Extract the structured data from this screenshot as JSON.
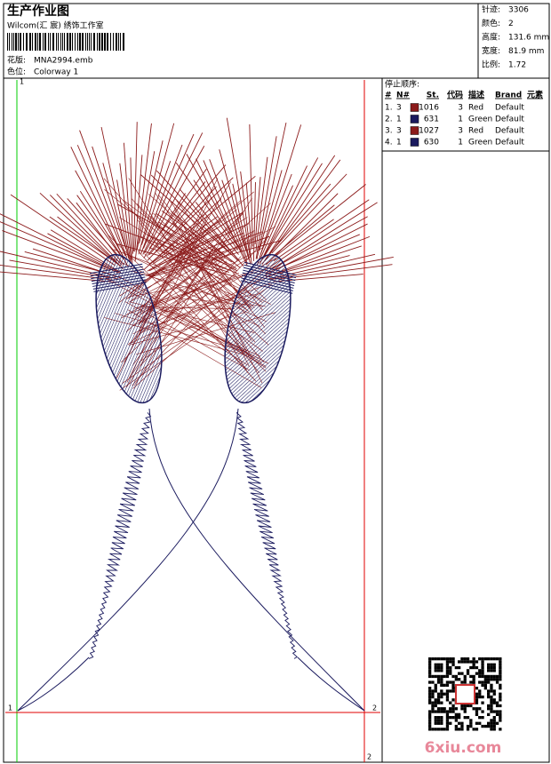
{
  "header": {
    "title": "生产作业图",
    "studio": "Wilcom(汇 宸) 绣饰工作室",
    "design_label": "花版:",
    "design": "MNA2994.emb",
    "colorway_label": "色位:",
    "colorway": "Colorway 1"
  },
  "info": [
    {
      "label": "针迹:",
      "value": "3306"
    },
    {
      "label": "颜色:",
      "value": "2"
    },
    {
      "label": "高度:",
      "value": "131.6 mm"
    },
    {
      "label": "宽度:",
      "value": "81.9 mm"
    },
    {
      "label": "比例:",
      "value": "1.72"
    }
  ],
  "stop_sequence": {
    "title": "停止顺序:",
    "columns": [
      "#",
      "N#",
      "St.",
      "代码",
      "描述",
      "Brand",
      "元素"
    ],
    "rows": [
      {
        "index": "1.",
        "needle": "3",
        "color": "#8b1a1a",
        "stitches": "1016",
        "code": "3",
        "description": "Red",
        "brand": "Default"
      },
      {
        "index": "2.",
        "needle": "1",
        "color": "#1a1a5e",
        "stitches": "631",
        "code": "1",
        "description": "Green",
        "brand": "Default"
      },
      {
        "index": "3.",
        "needle": "3",
        "color": "#8b1a1a",
        "stitches": "1027",
        "code": "3",
        "description": "Red",
        "brand": "Default"
      },
      {
        "index": "4.",
        "needle": "1",
        "color": "#1a1a5e",
        "stitches": "630",
        "code": "1",
        "description": "Green",
        "brand": "Default"
      }
    ]
  },
  "markers": {
    "top_left": "1",
    "bottom_left": "1",
    "right": "2",
    "bottom": "2"
  },
  "watermark": "6xiu.com"
}
